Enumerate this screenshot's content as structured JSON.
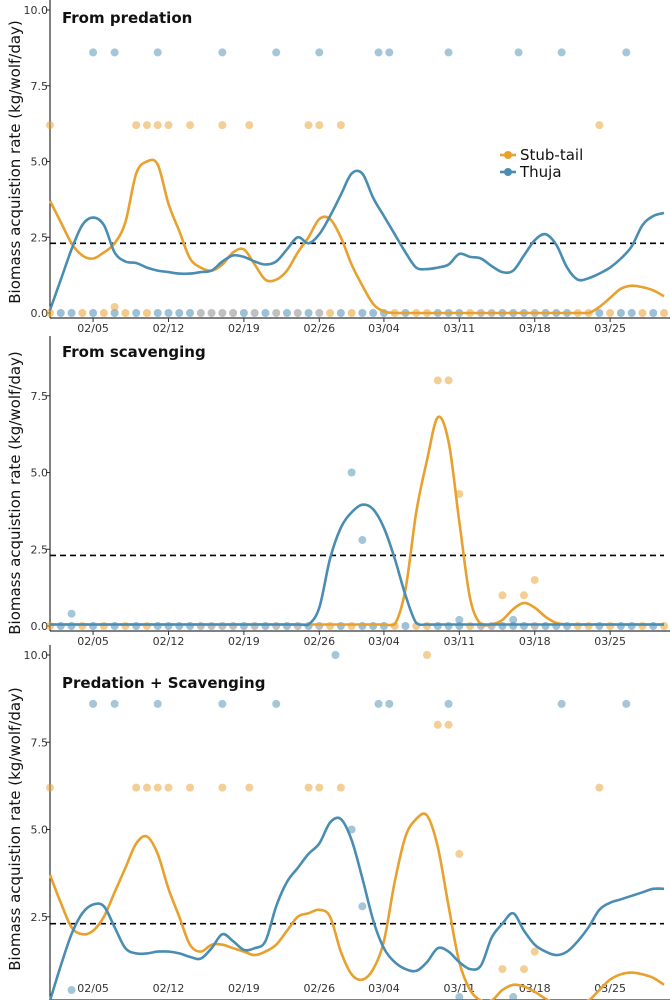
{
  "colors": {
    "stub_tail": "#e8a02e",
    "thuja": "#4a8db2",
    "overlap": "#8c8c8c",
    "reference": "#000000"
  },
  "chart_data": {
    "type": "line",
    "x_tick_labels": [
      "02/05",
      "02/12",
      "02/19",
      "02/26",
      "03/04",
      "03/11",
      "03/18",
      "03/25"
    ],
    "x_tick_days": [
      5,
      12,
      19,
      26,
      32,
      39,
      46,
      53
    ],
    "x_range_days": [
      1,
      58
    ],
    "y_ticks": [
      0,
      2.5,
      5,
      7.5,
      10
    ],
    "y_tick_labels": [
      "0.0",
      "2.5",
      "5.0",
      "7.5",
      "10.0"
    ],
    "ylabel": "Biomass acquistion rate (kg/wolf/day)",
    "reference_line_y": 2.3,
    "legend": {
      "placement": "top-right",
      "entries": [
        "Stub-tail",
        "Thuja"
      ]
    },
    "panels": [
      {
        "title": "From predation",
        "ylim": [
          0,
          10
        ],
        "series": [
          {
            "name": "Stub-tail",
            "color": "stub_tail",
            "x": [
              1,
              2,
              3,
              4,
              5,
              6,
              7,
              8,
              9,
              10,
              11,
              12,
              13,
              14,
              15,
              16,
              17,
              18,
              19,
              20,
              21,
              22,
              23,
              24,
              25,
              26,
              27,
              28,
              29,
              30,
              31,
              32,
              33,
              34,
              35,
              36,
              37,
              38,
              39,
              40,
              41,
              42,
              43,
              44,
              45,
              46,
              47,
              48,
              49,
              50,
              51,
              52,
              53,
              54,
              55,
              56,
              57,
              58
            ],
            "y": [
              3.7,
              3.0,
              2.3,
              1.9,
              1.8,
              2.0,
              2.3,
              3.0,
              4.6,
              5.0,
              4.9,
              3.6,
              2.7,
              1.8,
              1.5,
              1.4,
              1.6,
              2.0,
              2.1,
              1.6,
              1.1,
              1.1,
              1.4,
              2.0,
              2.5,
              3.1,
              3.1,
              2.5,
              1.6,
              0.9,
              0.3,
              0.05,
              0,
              0,
              0,
              0,
              0,
              0,
              0,
              0,
              0,
              0,
              0,
              0,
              0,
              0,
              0,
              0,
              0,
              0,
              0,
              0.2,
              0.5,
              0.8,
              0.9,
              0.85,
              0.75,
              0.55
            ]
          },
          {
            "name": "Thuja",
            "color": "thuja",
            "x": [
              1,
              2,
              3,
              4,
              5,
              6,
              7,
              8,
              9,
              10,
              11,
              12,
              13,
              14,
              15,
              16,
              17,
              18,
              19,
              20,
              21,
              22,
              23,
              24,
              25,
              26,
              27,
              28,
              29,
              30,
              31,
              32,
              33,
              34,
              35,
              36,
              37,
              38,
              39,
              40,
              41,
              42,
              43,
              44,
              45,
              46,
              47,
              48,
              49,
              50,
              51,
              52,
              53,
              54,
              55,
              56,
              57,
              58
            ],
            "y": [
              0.1,
              1.1,
              2.1,
              2.9,
              3.15,
              2.9,
              2.0,
              1.7,
              1.65,
              1.5,
              1.4,
              1.35,
              1.3,
              1.3,
              1.35,
              1.4,
              1.7,
              1.9,
              1.85,
              1.7,
              1.6,
              1.7,
              2.1,
              2.5,
              2.3,
              2.6,
              3.2,
              3.9,
              4.6,
              4.6,
              3.8,
              3.2,
              2.6,
              2.0,
              1.5,
              1.45,
              1.5,
              1.6,
              1.95,
              1.85,
              1.8,
              1.55,
              1.35,
              1.4,
              1.9,
              2.4,
              2.6,
              2.25,
              1.5,
              1.1,
              1.15,
              1.3,
              1.5,
              1.8,
              2.2,
              2.9,
              3.2,
              3.3
            ]
          }
        ],
        "points": [
          {
            "series": "Thuja",
            "x": [
              5,
              7,
              11,
              17,
              22,
              26,
              31.5,
              32.5,
              38,
              44.5,
              48.5,
              54.5
            ],
            "y": [
              8.6,
              8.6,
              8.6,
              8.6,
              8.6,
              8.6,
              8.6,
              8.6,
              8.6,
              8.6,
              8.6,
              8.6
            ]
          },
          {
            "series": "Stub-tail",
            "x": [
              1,
              9,
              10,
              11,
              12,
              14,
              17,
              19.5,
              25,
              26,
              28,
              52
            ],
            "y": [
              6.2,
              6.2,
              6.2,
              6.2,
              6.2,
              6.2,
              6.2,
              6.2,
              6.2,
              6.2,
              6.2,
              6.2
            ]
          },
          {
            "series": "Stub-tail",
            "x": [
              7
            ],
            "y": [
              0.2
            ]
          }
        ]
      },
      {
        "title": "From scavenging",
        "ylim": [
          0,
          10
        ],
        "series": [
          {
            "name": "Stub-tail",
            "color": "stub_tail",
            "x": [
              1,
              5,
              10,
              15,
              20,
              25,
              30,
              31,
              32,
              33,
              34,
              35,
              36,
              37,
              38,
              39,
              40,
              41,
              42,
              43,
              44,
              45,
              46,
              47,
              48,
              49,
              50,
              55,
              58
            ],
            "y": [
              0.05,
              0.05,
              0.05,
              0.05,
              0.05,
              0.05,
              0.05,
              0.05,
              0.05,
              0.05,
              1.2,
              3.7,
              5.4,
              6.8,
              6.0,
              3.4,
              0.9,
              0.05,
              0.05,
              0.2,
              0.55,
              0.75,
              0.6,
              0.3,
              0.1,
              0.05,
              0.05,
              0.05,
              0.05
            ]
          },
          {
            "name": "Thuja",
            "color": "thuja",
            "x": [
              1,
              5,
              10,
              15,
              20,
              24,
              25,
              26,
              27,
              28,
              29,
              30,
              31,
              32,
              33,
              34,
              35,
              36,
              37,
              38,
              40,
              45,
              50,
              55,
              58
            ],
            "y": [
              0.05,
              0.05,
              0.05,
              0.05,
              0.05,
              0.05,
              0.05,
              0.6,
              2.2,
              3.2,
              3.7,
              3.95,
              3.8,
              3.2,
              2.2,
              1.0,
              0.1,
              0.05,
              0.05,
              0.05,
              0.05,
              0.05,
              0.05,
              0.05,
              0.05
            ]
          }
        ],
        "points": [
          {
            "series": "Stub-tail",
            "x": [
              37,
              38
            ],
            "y": [
              8.0,
              8.0
            ]
          },
          {
            "series": "Thuja",
            "x": [
              29
            ],
            "y": [
              5.0
            ]
          },
          {
            "series": "Stub-tail",
            "x": [
              39
            ],
            "y": [
              4.3
            ]
          },
          {
            "series": "Thuja",
            "x": [
              30
            ],
            "y": [
              2.8
            ]
          },
          {
            "series": "Stub-tail",
            "x": [
              43,
              45,
              46
            ],
            "y": [
              1.0,
              1.0,
              1.5
            ]
          },
          {
            "series": "Thuja",
            "x": [
              3,
              39,
              44
            ],
            "y": [
              0.4,
              0.2,
              0.2
            ]
          }
        ]
      },
      {
        "title": "Predation + Scavenging",
        "ylim": [
          0,
          10
        ],
        "series": [
          {
            "name": "Stub-tail",
            "color": "stub_tail",
            "x": [
              1,
              2,
              3,
              4,
              5,
              6,
              7,
              8,
              9,
              10,
              11,
              12,
              13,
              14,
              15,
              16,
              17,
              18,
              19,
              20,
              21,
              22,
              23,
              24,
              25,
              26,
              27,
              28,
              29,
              30,
              31,
              32,
              33,
              34,
              35,
              36,
              37,
              38,
              39,
              40,
              41,
              42,
              43,
              44,
              45,
              46,
              47,
              48,
              49,
              50,
              51,
              52,
              53,
              54,
              55,
              56,
              57,
              58
            ],
            "y": [
              3.7,
              2.9,
              2.2,
              2.0,
              2.1,
              2.5,
              3.2,
              3.9,
              4.6,
              4.8,
              4.3,
              3.3,
              2.5,
              1.7,
              1.5,
              1.7,
              1.7,
              1.6,
              1.5,
              1.4,
              1.5,
              1.7,
              2.1,
              2.5,
              2.6,
              2.7,
              2.5,
              1.5,
              0.85,
              0.7,
              1.0,
              1.8,
              3.5,
              4.8,
              5.3,
              5.4,
              4.5,
              2.8,
              1.2,
              0.4,
              0.1,
              0.1,
              0.4,
              0.55,
              0.5,
              0.35,
              0.15,
              0,
              0,
              0,
              0.1,
              0.4,
              0.7,
              0.85,
              0.9,
              0.85,
              0.75,
              0.55
            ]
          },
          {
            "name": "Thuja",
            "color": "thuja",
            "x": [
              1,
              2,
              3,
              4,
              5,
              6,
              7,
              8,
              9,
              10,
              11,
              12,
              13,
              14,
              15,
              16,
              17,
              18,
              19,
              20,
              21,
              22,
              23,
              24,
              25,
              26,
              27,
              28,
              29,
              30,
              31,
              32,
              33,
              34,
              35,
              36,
              37,
              38,
              39,
              40,
              41,
              42,
              43,
              44,
              45,
              46,
              47,
              48,
              49,
              50,
              51,
              52,
              53,
              54,
              55,
              56,
              57,
              58
            ],
            "y": [
              0.1,
              1.1,
              2.0,
              2.6,
              2.85,
              2.8,
              2.2,
              1.6,
              1.45,
              1.45,
              1.5,
              1.5,
              1.45,
              1.35,
              1.3,
              1.6,
              2.0,
              1.8,
              1.55,
              1.6,
              1.8,
              2.8,
              3.5,
              3.9,
              4.3,
              4.6,
              5.2,
              5.3,
              4.7,
              3.6,
              2.4,
              1.6,
              1.2,
              1.0,
              0.95,
              1.2,
              1.6,
              1.5,
              1.2,
              1.0,
              1.1,
              1.9,
              2.3,
              2.6,
              2.1,
              1.7,
              1.5,
              1.4,
              1.5,
              1.8,
              2.2,
              2.7,
              2.9,
              3.0,
              3.1,
              3.2,
              3.3,
              3.3
            ]
          }
        ],
        "points": [
          {
            "series": "Thuja",
            "x": [
              27.5
            ],
            "y": [
              10.0
            ]
          },
          {
            "series": "Stub-tail",
            "x": [
              36
            ],
            "y": [
              10.0
            ]
          },
          {
            "series": "Thuja",
            "x": [
              5,
              7,
              11,
              17,
              22,
              31.5,
              32.5,
              38,
              48.5,
              54.5
            ],
            "y": [
              8.6,
              8.6,
              8.6,
              8.6,
              8.6,
              8.6,
              8.6,
              8.6,
              8.6,
              8.6
            ]
          },
          {
            "series": "Stub-tail",
            "x": [
              37,
              38
            ],
            "y": [
              8.0,
              8.0
            ]
          },
          {
            "series": "Stub-tail",
            "x": [
              1,
              9,
              10,
              11,
              12,
              14,
              17,
              19.5,
              25,
              26,
              28,
              52
            ],
            "y": [
              6.2,
              6.2,
              6.2,
              6.2,
              6.2,
              6.2,
              6.2,
              6.2,
              6.2,
              6.2,
              6.2,
              6.2
            ]
          },
          {
            "series": "Thuja",
            "x": [
              29
            ],
            "y": [
              5.0
            ]
          },
          {
            "series": "Stub-tail",
            "x": [
              39
            ],
            "y": [
              4.3
            ]
          },
          {
            "series": "Thuja",
            "x": [
              30
            ],
            "y": [
              2.8
            ]
          },
          {
            "series": "Stub-tail",
            "x": [
              43,
              45,
              46
            ],
            "y": [
              1.0,
              1.0,
              1.5
            ]
          },
          {
            "series": "Thuja",
            "x": [
              3,
              39,
              44
            ],
            "y": [
              0.4,
              0.2,
              0.2
            ]
          }
        ]
      }
    ],
    "baseline_points": {
      "y": 0,
      "stub_tail_x": [
        1,
        4,
        6,
        8,
        10,
        27,
        29,
        33,
        35,
        36,
        40,
        50,
        51,
        53,
        56,
        58
      ],
      "thuja_x": [
        2,
        3,
        5,
        7,
        9,
        11,
        12,
        13,
        14,
        19,
        21,
        23,
        25,
        28,
        30,
        31,
        32,
        34,
        37,
        38,
        39,
        43,
        44,
        45,
        47,
        48,
        49,
        52,
        54,
        55,
        57
      ],
      "overlap_x": [
        15,
        16,
        17,
        18,
        20,
        22,
        24,
        26,
        41,
        42,
        46
      ]
    }
  }
}
